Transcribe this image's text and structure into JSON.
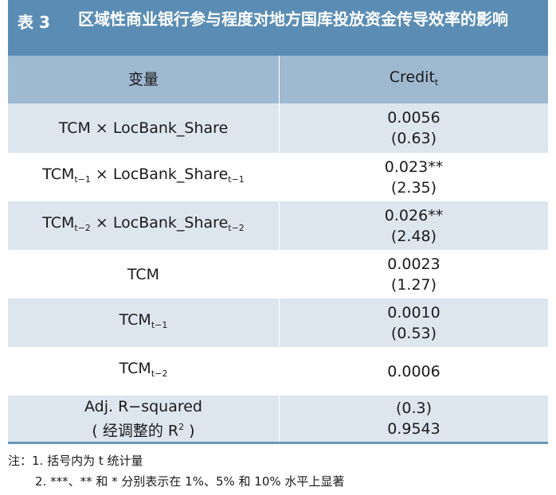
{
  "title": {
    "label": "表 3",
    "text": "区域性商业银行参与程度对地方国库投放资金传导效率的影响"
  },
  "table": {
    "header": {
      "left": "变量",
      "right_main": "Credit",
      "right_sub": "t"
    },
    "rows": [
      {
        "var_main": "TCM × LocBank_Share",
        "coef": "0.0056",
        "tstat": "(0.63)"
      },
      {
        "var_a": "TCM",
        "var_a_sub": "t−1",
        "var_b": " × LocBank_Share",
        "var_b_sub": "t−1",
        "coef": "0.023**",
        "tstat": "(2.35)"
      },
      {
        "var_a": "TCM",
        "var_a_sub": "t−2",
        "var_b": " × LocBank_Share",
        "var_b_sub": "t−2",
        "coef": "0.026**",
        "tstat": "(2.48)"
      },
      {
        "var_main": "TCM",
        "coef": "0.0023",
        "tstat": "(1.27)"
      },
      {
        "var_a": "TCM",
        "var_a_sub": "t−1",
        "coef": "0.0010",
        "tstat": "(0.53)"
      },
      {
        "var_a": "TCM",
        "var_a_sub": "t−2",
        "coef": "0.0006"
      },
      {
        "var_line1": "Adj. R−squared",
        "var_line2": "( 经调整的 R",
        "var_line2_sup": "2",
        "var_line2_end": " )",
        "coef": "(0.3)",
        "tstat": "0.9543"
      }
    ]
  },
  "notes": {
    "line1": "注：1. 括号内为 t 统计量",
    "line2": "2. ***、** 和 * 分别表示在 1%、5% 和 10% 水平上显著"
  }
}
